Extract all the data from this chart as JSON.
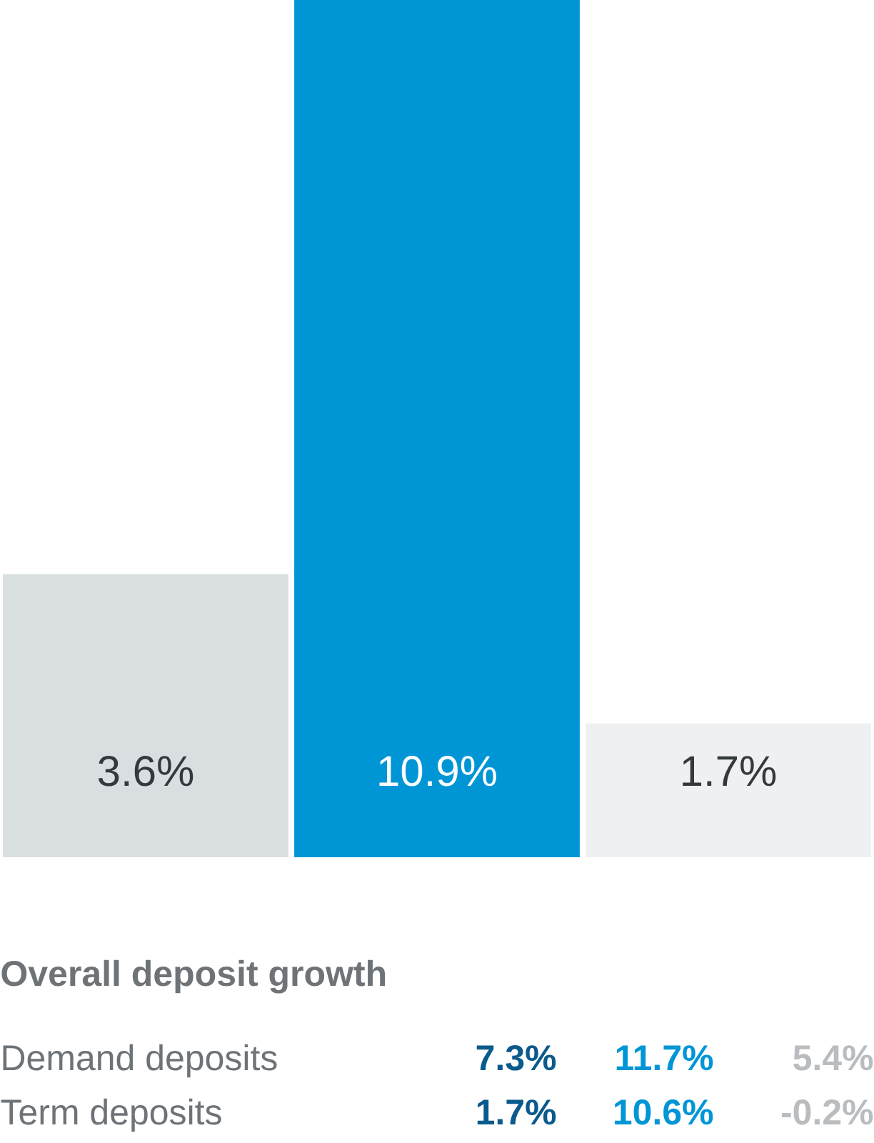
{
  "chart_data": {
    "type": "bar",
    "title": "Overall deposit growth",
    "categories": [
      null,
      null,
      null
    ],
    "values": [
      3.6,
      10.9,
      1.7
    ],
    "colors": [
      "#d9dfe1",
      "#0096d6",
      "#eff0f2"
    ],
    "value_labels": [
      "3.6%",
      "10.9%",
      "1.7%"
    ],
    "annotations": [
      "Demand deposits",
      "7.3%",
      "11.7%",
      "5.4%",
      "Term deposits",
      "1.7%",
      "10.6%",
      "-0.2%"
    ]
  }
}
